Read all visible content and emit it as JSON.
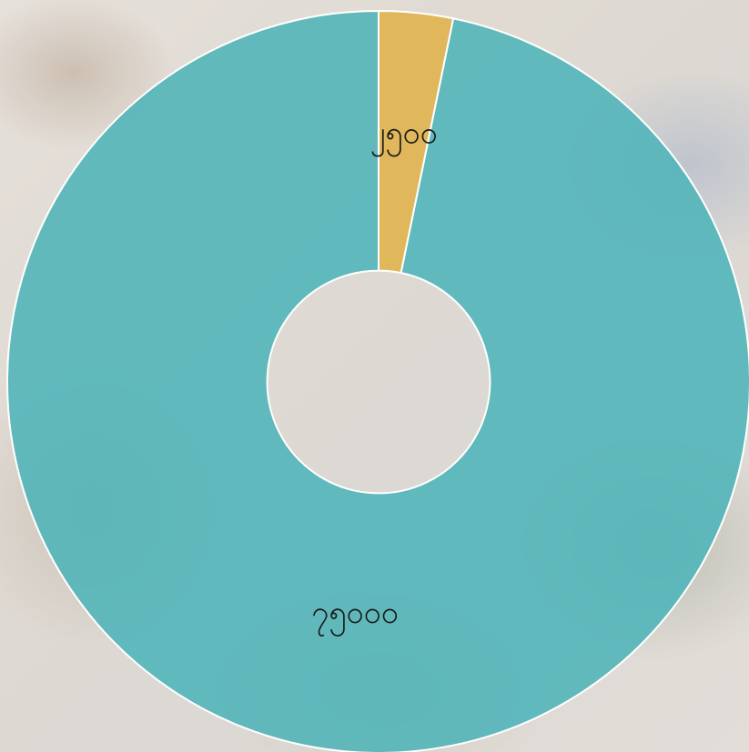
{
  "chart_data": {
    "type": "pie",
    "variant": "donut",
    "title": "",
    "legend": "none",
    "slices": [
      {
        "label": "၂၅၀၀",
        "value": 2500,
        "color": "#e0b24a"
      },
      {
        "label": "၇၅၀၀၀",
        "value": 75000,
        "color": "#4fb4b8"
      }
    ],
    "start_angle_deg": 0,
    "direction": "clockwise",
    "inner_radius_ratio": 0.3,
    "opacity": 0.88
  }
}
